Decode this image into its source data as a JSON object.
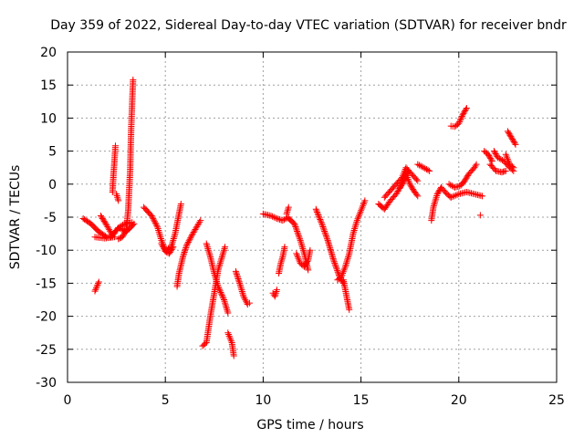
{
  "colors": {
    "series": "#ff0000",
    "grid": "#a0a0a0",
    "axis": "#000000"
  },
  "chart_data": {
    "type": "scatter",
    "title": "Day 359 of 2022, Sidereal Day-to-day VTEC variation (SDTVAR) for receiver bndr",
    "xlabel": "GPS time / hours",
    "ylabel": "SDTVAR / TECUs",
    "xlim": [
      0,
      25
    ],
    "ylim": [
      -30,
      20
    ],
    "xticks": [
      0,
      5,
      10,
      15,
      20,
      25
    ],
    "yticks": [
      -30,
      -25,
      -20,
      -15,
      -10,
      -5,
      0,
      5,
      10,
      15,
      20
    ],
    "grid": true,
    "marker": "+",
    "series": [
      {
        "name": "SDTVAR",
        "segments": [
          [
            [
              0.8,
              -5.2
            ],
            [
              1.2,
              -6.0
            ],
            [
              1.6,
              -7.2
            ],
            [
              2.0,
              -8.0
            ]
          ],
          [
            [
              1.4,
              -8.0
            ],
            [
              1.9,
              -8.2
            ],
            [
              2.4,
              -8.0
            ]
          ],
          [
            [
              1.4,
              -16.2
            ],
            [
              1.5,
              -15.5
            ],
            [
              1.6,
              -14.8
            ]
          ],
          [
            [
              1.7,
              -4.8
            ],
            [
              2.0,
              -6.2
            ],
            [
              2.3,
              -7.8
            ],
            [
              2.6,
              -6.6
            ],
            [
              2.9,
              -6.0
            ],
            [
              3.3,
              -5.8
            ]
          ],
          [
            [
              2.2,
              -8.0
            ],
            [
              2.6,
              -6.6
            ],
            [
              3.0,
              -7.2
            ],
            [
              3.4,
              -6.0
            ]
          ],
          [
            [
              2.3,
              -1.2
            ],
            [
              2.35,
              1.5
            ],
            [
              2.4,
              3.5
            ],
            [
              2.45,
              5.8
            ]
          ],
          [
            [
              2.5,
              -1.5
            ],
            [
              2.6,
              -2.5
            ]
          ],
          [
            [
              2.6,
              -8.3
            ],
            [
              2.8,
              -8.0
            ],
            [
              3.0,
              -7.0
            ],
            [
              3.1,
              -4.0
            ],
            [
              3.2,
              2.0
            ],
            [
              3.25,
              8.0
            ],
            [
              3.3,
              12.0
            ],
            [
              3.35,
              15.8
            ]
          ],
          [
            [
              3.9,
              -3.5
            ],
            [
              4.3,
              -4.8
            ],
            [
              4.6,
              -6.5
            ],
            [
              4.8,
              -8.5
            ],
            [
              5.0,
              -10.0
            ],
            [
              5.3,
              -9.5
            ],
            [
              5.5,
              -7.5
            ],
            [
              5.7,
              -4.5
            ],
            [
              5.8,
              -3.0
            ]
          ],
          [
            [
              4.8,
              -9.0
            ],
            [
              5.0,
              -10.2
            ],
            [
              5.2,
              -10.5
            ],
            [
              5.4,
              -9.5
            ]
          ],
          [
            [
              5.6,
              -15.5
            ],
            [
              5.7,
              -13.5
            ],
            [
              5.9,
              -11.0
            ],
            [
              6.1,
              -9.2
            ],
            [
              6.4,
              -7.5
            ],
            [
              6.7,
              -6.0
            ],
            [
              6.8,
              -5.5
            ]
          ],
          [
            [
              6.9,
              -24.5
            ],
            [
              7.1,
              -24.0
            ],
            [
              7.3,
              -20.0
            ],
            [
              7.5,
              -16.5
            ],
            [
              7.7,
              -13.0
            ],
            [
              7.9,
              -11.0
            ],
            [
              8.05,
              -9.5
            ]
          ],
          [
            [
              7.1,
              -9.0
            ],
            [
              7.3,
              -11.0
            ],
            [
              7.5,
              -13.5
            ],
            [
              7.7,
              -15.5
            ],
            [
              8.0,
              -17.5
            ],
            [
              8.2,
              -19.5
            ]
          ],
          [
            [
              8.2,
              -22.5
            ],
            [
              8.4,
              -24.0
            ],
            [
              8.5,
              -26.0
            ]
          ],
          [
            [
              8.6,
              -13.2
            ],
            [
              8.8,
              -15.0
            ],
            [
              9.0,
              -17.0
            ],
            [
              9.2,
              -18.2
            ],
            [
              9.3,
              -18.0
            ]
          ],
          [
            [
              10.0,
              -4.5
            ],
            [
              10.4,
              -4.8
            ],
            [
              10.7,
              -5.2
            ],
            [
              11.0,
              -5.5
            ],
            [
              11.3,
              -5.0
            ]
          ],
          [
            [
              10.5,
              -16.5
            ],
            [
              10.6,
              -17.0
            ],
            [
              10.7,
              -16.0
            ]
          ],
          [
            [
              10.8,
              -13.5
            ],
            [
              10.9,
              -12.0
            ],
            [
              11.0,
              -11.0
            ],
            [
              11.1,
              -9.5
            ]
          ],
          [
            [
              11.2,
              -4.5
            ],
            [
              11.3,
              -3.5
            ]
          ],
          [
            [
              11.3,
              -5.2
            ],
            [
              11.6,
              -6.0
            ],
            [
              11.9,
              -8.5
            ],
            [
              12.1,
              -10.5
            ],
            [
              12.3,
              -13.0
            ]
          ],
          [
            [
              11.7,
              -10.5
            ],
            [
              11.9,
              -12.0
            ],
            [
              12.1,
              -12.5
            ],
            [
              12.3,
              -11.5
            ],
            [
              12.4,
              -10.0
            ]
          ],
          [
            [
              12.7,
              -3.8
            ],
            [
              13.0,
              -6.0
            ],
            [
              13.3,
              -8.5
            ],
            [
              13.6,
              -11.5
            ],
            [
              13.9,
              -14.0
            ],
            [
              14.1,
              -15.0
            ]
          ],
          [
            [
              13.8,
              -14.5
            ],
            [
              14.0,
              -14.0
            ],
            [
              14.2,
              -12.5
            ],
            [
              14.4,
              -10.5
            ],
            [
              14.6,
              -7.5
            ],
            [
              14.8,
              -5.5
            ],
            [
              15.0,
              -4.0
            ],
            [
              15.2,
              -2.5
            ]
          ],
          [
            [
              14.1,
              -14.5
            ],
            [
              14.2,
              -16.0
            ],
            [
              14.3,
              -17.5
            ],
            [
              14.4,
              -19.0
            ]
          ],
          [
            [
              15.9,
              -3.0
            ],
            [
              16.2,
              -3.8
            ],
            [
              16.5,
              -2.5
            ],
            [
              16.8,
              -1.5
            ],
            [
              17.1,
              0.0
            ],
            [
              17.4,
              2.0
            ]
          ],
          [
            [
              16.2,
              -2.0
            ],
            [
              16.5,
              -1.0
            ],
            [
              16.8,
              0.0
            ],
            [
              17.1,
              1.0
            ],
            [
              17.3,
              2.5
            ],
            [
              17.6,
              1.5
            ],
            [
              17.9,
              0.5
            ]
          ],
          [
            [
              17.0,
              -0.5
            ],
            [
              17.3,
              1.5
            ],
            [
              17.5,
              0.0
            ],
            [
              17.7,
              -1.0
            ],
            [
              17.9,
              -1.8
            ]
          ],
          [
            [
              17.9,
              3.0
            ],
            [
              18.2,
              2.5
            ],
            [
              18.5,
              2.0
            ]
          ],
          [
            [
              18.6,
              -5.5
            ],
            [
              18.7,
              -3.5
            ],
            [
              18.9,
              -1.5
            ],
            [
              19.1,
              -0.5
            ],
            [
              19.4,
              -1.5
            ],
            [
              19.6,
              -2.0
            ]
          ],
          [
            [
              19.6,
              -2.0
            ],
            [
              20.0,
              -1.5
            ],
            [
              20.4,
              -1.2
            ],
            [
              20.8,
              -1.5
            ],
            [
              21.2,
              -1.8
            ]
          ],
          [
            [
              19.5,
              0.0
            ],
            [
              19.8,
              -0.5
            ],
            [
              20.1,
              -0.2
            ],
            [
              20.3,
              0.5
            ],
            [
              20.5,
              1.5
            ],
            [
              20.8,
              2.5
            ],
            [
              20.9,
              3.0
            ]
          ],
          [
            [
              19.6,
              8.8
            ],
            [
              19.8,
              8.7
            ],
            [
              20.0,
              9.2
            ],
            [
              20.2,
              10.5
            ],
            [
              20.4,
              11.5
            ]
          ],
          [
            [
              21.1,
              -4.7
            ]
          ],
          [
            [
              21.3,
              5.0
            ],
            [
              21.5,
              4.5
            ],
            [
              21.7,
              3.5
            ]
          ],
          [
            [
              21.6,
              3.0
            ],
            [
              21.9,
              2.0
            ],
            [
              22.2,
              1.8
            ],
            [
              22.4,
              2.0
            ]
          ],
          [
            [
              21.8,
              5.0
            ],
            [
              22.0,
              4.0
            ],
            [
              22.3,
              3.5
            ],
            [
              22.6,
              2.5
            ],
            [
              22.8,
              2.0
            ]
          ],
          [
            [
              22.4,
              4.5
            ],
            [
              22.6,
              3.0
            ],
            [
              22.8,
              2.5
            ]
          ],
          [
            [
              22.5,
              8.0
            ],
            [
              22.7,
              7.0
            ],
            [
              22.9,
              6.0
            ]
          ]
        ]
      }
    ]
  }
}
